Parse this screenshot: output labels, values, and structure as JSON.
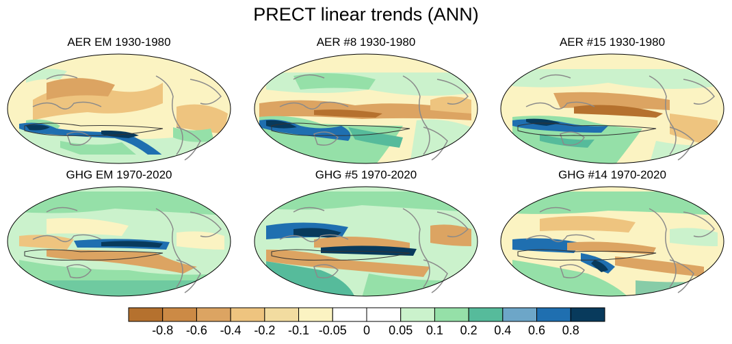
{
  "title": "PRECT linear trends (ANN)",
  "panels": [
    {
      "title": "AER EM 1930-1980"
    },
    {
      "title": "AER #8 1930-1980"
    },
    {
      "title": "AER #15 1930-1980"
    },
    {
      "title": "GHG EM 1970-2020"
    },
    {
      "title": "GHG #5 1970-2020"
    },
    {
      "title": "GHG #14 1970-2020"
    }
  ],
  "colorbar": {
    "labels": [
      "-0.8",
      "-0.6",
      "-0.4",
      "-0.2",
      "-0.1",
      "-0.05",
      "0",
      "0.05",
      "0.1",
      "0.2",
      "0.4",
      "0.6",
      "0.8"
    ],
    "colors": [
      "#b5712e",
      "#cc8a45",
      "#dca462",
      "#eec47f",
      "#f2dca0",
      "#fbf3c2",
      "#ffffff",
      "#ffffff",
      "#cbf2cc",
      "#95e0a8",
      "#56bb9b",
      "#6da6c8",
      "#1f6fb0",
      "#083a5c"
    ]
  },
  "palette": {
    "brown_dark": "#b5712e",
    "brown": "#dca462",
    "tan": "#f2dca0",
    "green_light": "#cbf2cc",
    "green": "#95e0a8",
    "teal": "#56bb9b",
    "blue": "#1f6fb0",
    "navy": "#083a5c",
    "coast": "#8a8a8a"
  }
}
